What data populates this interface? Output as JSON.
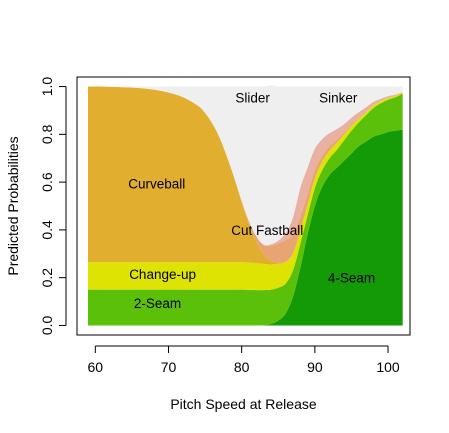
{
  "chart_data": {
    "type": "area",
    "title": "",
    "xlabel": "Pitch Speed at Release",
    "ylabel": "Predicted Probabilities",
    "xlim": [
      57.5,
      103
    ],
    "ylim": [
      -0.04,
      1.04
    ],
    "x_ticks": [
      60,
      70,
      80,
      90,
      100
    ],
    "y_ticks": [
      0.0,
      0.2,
      0.4,
      0.6,
      0.8,
      1.0
    ],
    "x_tick_labels": [
      "60",
      "70",
      "80",
      "90",
      "100"
    ],
    "y_tick_labels": [
      "0.0",
      "0.2",
      "0.4",
      "0.6",
      "0.8",
      "1.0"
    ],
    "x": [
      59,
      60,
      62,
      64,
      66,
      68,
      70,
      72,
      74,
      75,
      76,
      77,
      78,
      79,
      80,
      81,
      82,
      83,
      84,
      85,
      86,
      87,
      88,
      89,
      90,
      91,
      92,
      93,
      94,
      95,
      96,
      97,
      98,
      99,
      100,
      101,
      102
    ],
    "series": [
      {
        "name": "4-Seam",
        "color": "#139a06",
        "values": [
          0,
          0,
          0,
          0,
          0,
          0,
          0,
          0,
          0,
          0,
          0,
          0,
          0,
          0,
          0,
          0,
          0,
          0.001,
          0.006,
          0.02,
          0.05,
          0.12,
          0.24,
          0.38,
          0.5,
          0.58,
          0.63,
          0.66,
          0.69,
          0.72,
          0.75,
          0.77,
          0.79,
          0.8,
          0.81,
          0.815,
          0.82
        ]
      },
      {
        "name": "2-Seam",
        "color": "#5bc00a",
        "values": [
          0.15,
          0.15,
          0.15,
          0.15,
          0.15,
          0.15,
          0.15,
          0.15,
          0.15,
          0.15,
          0.15,
          0.15,
          0.15,
          0.15,
          0.15,
          0.149,
          0.148,
          0.147,
          0.144,
          0.138,
          0.125,
          0.11,
          0.1,
          0.08,
          0.075,
          0.07,
          0.07,
          0.075,
          0.085,
          0.095,
          0.1,
          0.11,
          0.12,
          0.13,
          0.135,
          0.14,
          0.15
        ]
      },
      {
        "name": "Change-up",
        "color": "#dfe304",
        "values": [
          0.115,
          0.115,
          0.115,
          0.115,
          0.115,
          0.115,
          0.115,
          0.115,
          0.115,
          0.115,
          0.115,
          0.115,
          0.115,
          0.115,
          0.115,
          0.114,
          0.113,
          0.11,
          0.105,
          0.1,
          0.09,
          0.07,
          0.055,
          0.045,
          0.04,
          0.035,
          0.032,
          0.03,
          0.025,
          0.02,
          0.015,
          0.012,
          0.01,
          0.008,
          0.007,
          0.006,
          0.005
        ]
      },
      {
        "name": "Curveball",
        "color": "#e2ae30",
        "values": [
          0.735,
          0.735,
          0.734,
          0.732,
          0.729,
          0.722,
          0.71,
          0.69,
          0.655,
          0.625,
          0.58,
          0.52,
          0.44,
          0.35,
          0.25,
          0.16,
          0.09,
          0.04,
          0.015,
          0.005,
          0.002,
          0.001,
          0,
          0,
          0,
          0,
          0,
          0,
          0,
          0,
          0,
          0,
          0,
          0,
          0,
          0,
          0
        ]
      },
      {
        "name": "Cut Fastball",
        "color": "#e8a473",
        "values": [
          0,
          0,
          0,
          0,
          0,
          0,
          0,
          0,
          0,
          0,
          0,
          0,
          0.001,
          0.003,
          0.006,
          0.012,
          0.022,
          0.04,
          0.065,
          0.08,
          0.09,
          0.08,
          0.06,
          0.045,
          0.035,
          0.025,
          0.018,
          0.012,
          0.008,
          0.005,
          0.003,
          0.002,
          0.001,
          0.001,
          0,
          0,
          0
        ]
      },
      {
        "name": "Sinker",
        "color": "#e8b1a2",
        "values": [
          0,
          0,
          0,
          0,
          0,
          0,
          0,
          0,
          0,
          0,
          0,
          0,
          0,
          0,
          0,
          0,
          0,
          0,
          0.005,
          0.012,
          0.03,
          0.07,
          0.12,
          0.11,
          0.09,
          0.07,
          0.055,
          0.045,
          0.035,
          0.03,
          0.025,
          0.02,
          0.015,
          0.01,
          0.008,
          0.005,
          0.002
        ]
      },
      {
        "name": "Slider",
        "color": "#efefef",
        "values": [
          0,
          0,
          0.001,
          0.003,
          0.006,
          0.013,
          0.025,
          0.045,
          0.08,
          0.11,
          0.155,
          0.215,
          0.294,
          0.382,
          0.479,
          0.565,
          0.627,
          0.662,
          0.665,
          0.645,
          0.613,
          0.549,
          0.425,
          0.34,
          0.26,
          0.22,
          0.195,
          0.178,
          0.157,
          0.13,
          0.107,
          0.086,
          0.064,
          0.051,
          0.04,
          0.034,
          0.023
        ]
      }
    ],
    "annotations": [
      {
        "text": "Slider",
        "x": 81.5,
        "y": 0.955
      },
      {
        "text": "Sinker",
        "x": 93.2,
        "y": 0.955
      },
      {
        "text": "Curveball",
        "x": 68.4,
        "y": 0.595
      },
      {
        "text": "Cut Fastball",
        "x": 83.5,
        "y": 0.4
      },
      {
        "text": "Change-up",
        "x": 69.2,
        "y": 0.215
      },
      {
        "text": "2-Seam",
        "x": 68.5,
        "y": 0.095
      },
      {
        "text": "4-Seam",
        "x": 95.0,
        "y": 0.2
      }
    ],
    "grid": false,
    "legend": "none"
  }
}
